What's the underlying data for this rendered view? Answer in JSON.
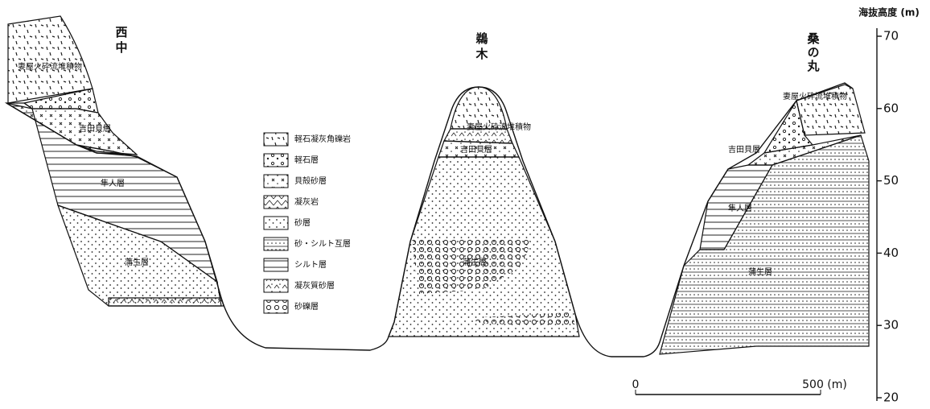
{
  "sites": [
    "西中",
    "鵜木",
    "桑の丸"
  ],
  "layers": {
    "left": [
      "妻屋火砕流堆積物",
      "吉田貝層",
      "隼人層",
      "蒲生層"
    ],
    "center": [
      "妻屋火砕流堆積物",
      "吉田貝層",
      "蒲生層"
    ],
    "right": [
      "妻屋火砕流堆積物",
      "吉田貝層",
      "隼人層",
      "蒲生層"
    ]
  },
  "legend": [
    "軽石凝灰角礫岩",
    "軽石層",
    "貝殻砂層",
    "凝灰岩",
    "砂層",
    "砂・シルト互層",
    "シルト層",
    "凝灰質砂層",
    "砂礫層"
  ],
  "elevation_axis": {
    "title": "海抜高度 (m)",
    "ylim": [
      20,
      70
    ],
    "ticks": [
      70,
      60,
      50,
      40,
      30,
      20
    ]
  },
  "scale_bar": {
    "start": "0",
    "end": "500 (m)"
  }
}
